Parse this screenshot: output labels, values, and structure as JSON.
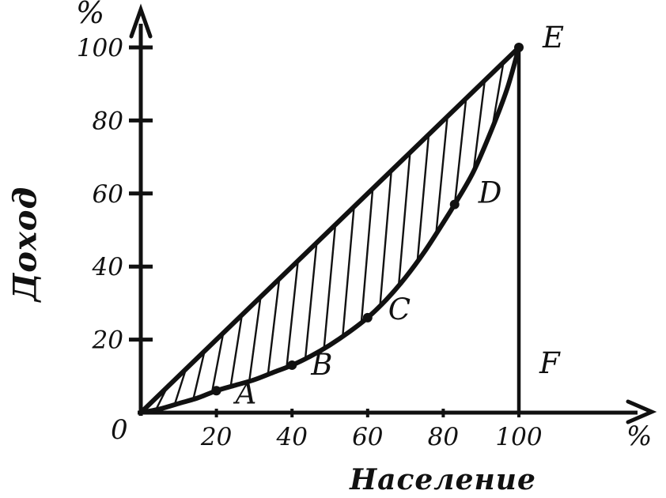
{
  "page": {
    "background": "#ffffff",
    "ink": "#111111"
  },
  "chart_data": {
    "type": "line",
    "title": "",
    "xlabel": "Население",
    "ylabel": "Доход",
    "x_unit": "%",
    "y_unit": "%",
    "origin_label": "0",
    "xlim": [
      0,
      112
    ],
    "ylim": [
      0,
      112
    ],
    "x_ticks": [
      20,
      40,
      60,
      80,
      100
    ],
    "y_ticks": [
      20,
      40,
      60,
      80,
      100
    ],
    "grid": false,
    "legend": "none",
    "ink_color": "#111111",
    "hatch_between": [
      "line-of-equality",
      "lorenz-curve"
    ],
    "series": [
      {
        "name": "line-of-equality",
        "style": "straight",
        "points": [
          [
            0,
            0
          ],
          [
            100,
            100
          ]
        ]
      },
      {
        "name": "lorenz-curve",
        "style": "smooth",
        "points": [
          [
            0,
            0
          ],
          [
            5,
            1
          ],
          [
            10,
            2.5
          ],
          [
            15,
            4
          ],
          [
            20,
            6
          ],
          [
            25,
            7.5
          ],
          [
            30,
            9
          ],
          [
            35,
            11
          ],
          [
            40,
            13
          ],
          [
            45,
            15.5
          ],
          [
            50,
            18.5
          ],
          [
            55,
            22
          ],
          [
            60,
            26
          ],
          [
            65,
            31
          ],
          [
            70,
            37
          ],
          [
            75,
            44
          ],
          [
            80,
            52
          ],
          [
            83,
            57
          ],
          [
            88,
            66
          ],
          [
            93,
            78
          ],
          [
            97,
            89
          ],
          [
            100,
            100
          ]
        ]
      },
      {
        "name": "perpendicular-EF",
        "style": "straight",
        "points": [
          [
            100,
            0
          ],
          [
            100,
            100
          ]
        ]
      }
    ],
    "labeled_points": [
      {
        "label": "A",
        "x": 20,
        "y": 6,
        "dot": true
      },
      {
        "label": "B",
        "x": 40,
        "y": 13,
        "dot": true
      },
      {
        "label": "C",
        "x": 60,
        "y": 26,
        "dot": true
      },
      {
        "label": "D",
        "x": 83,
        "y": 57,
        "dot": true
      },
      {
        "label": "E",
        "x": 100,
        "y": 100,
        "dot": true
      },
      {
        "label": "F",
        "x": 100,
        "y": 0,
        "dot": false
      }
    ]
  }
}
